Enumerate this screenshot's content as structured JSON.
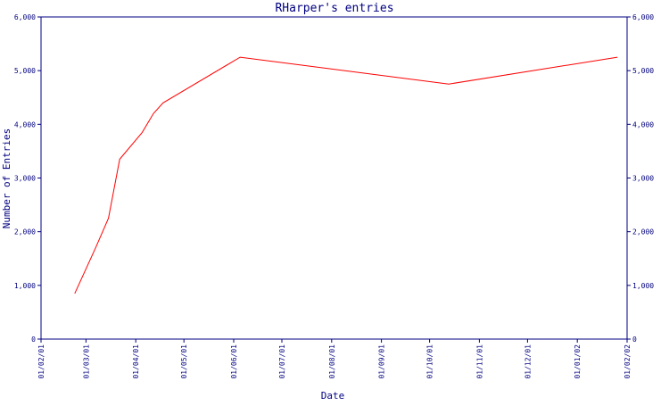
{
  "chart_data": {
    "type": "line",
    "title": "RHarper's entries",
    "xlabel": "Date",
    "ylabel": "Number of Entries",
    "ylim": [
      0,
      6000
    ],
    "yticks": [
      0,
      1000,
      2000,
      3000,
      4000,
      5000,
      6000
    ],
    "ytick_labels": [
      "0",
      "1,000",
      "2,000",
      "3,000",
      "4,000",
      "5,000",
      "6,000"
    ],
    "x_domain": [
      "2001-02-01",
      "2002-02-01"
    ],
    "xticks": [
      "2001-02-01",
      "2001-03-01",
      "2001-04-01",
      "2001-05-01",
      "2001-06-01",
      "2001-07-01",
      "2001-08-01",
      "2001-09-01",
      "2001-10-01",
      "2001-11-01",
      "2001-12-01",
      "2002-01-01",
      "2002-02-01"
    ],
    "xtick_labels": [
      "01/02/01",
      "01/03/01",
      "01/04/01",
      "01/05/01",
      "01/06/01",
      "01/07/01",
      "01/08/01",
      "01/09/01",
      "01/10/01",
      "01/11/01",
      "01/12/01",
      "01/01/02",
      "01/02/02"
    ],
    "grid": false,
    "right_axis_mirror": true,
    "series": [
      {
        "color": "#ff0000",
        "x": [
          "2001-02-22",
          "2001-03-07",
          "2001-03-15",
          "2001-03-22",
          "2001-04-05",
          "2001-04-12",
          "2001-04-18",
          "2001-06-05",
          "2001-10-13",
          "2002-01-26"
        ],
        "values": [
          850,
          1700,
          2250,
          3350,
          3850,
          4200,
          4400,
          5250,
          4750,
          5250
        ]
      }
    ]
  }
}
